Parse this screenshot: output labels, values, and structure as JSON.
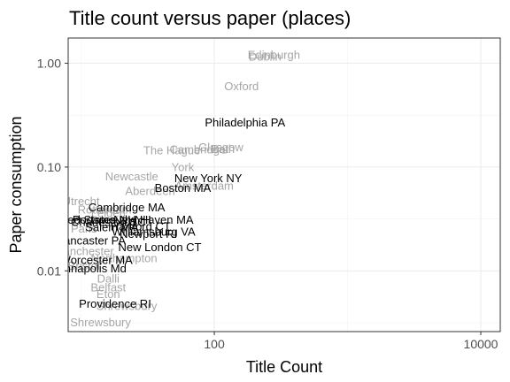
{
  "chart_data": {
    "type": "scatter",
    "title": "Title count versus paper (places)",
    "xlabel": "Title Count",
    "ylabel": "Paper consumption",
    "x_scale": "log10",
    "y_scale": "log10",
    "xlim": [
      8,
      14000
    ],
    "ylim": [
      0.0026,
      1.75
    ],
    "x_ticks": [
      {
        "value": 100,
        "label": "100"
      },
      {
        "value": 10000,
        "label": "10000"
      }
    ],
    "y_ticks": [
      {
        "value": 0.01,
        "label": "0.01"
      },
      {
        "value": 0.1,
        "label": "0.10"
      },
      {
        "value": 1,
        "label": "1.00"
      }
    ],
    "grid": true,
    "legend": "none",
    "colors": {
      "american": "#000000",
      "british": "#a6a6a6"
    },
    "points": [
      {
        "label": "Edinburgh",
        "x": 280,
        "y": 1.2,
        "group": "british"
      },
      {
        "label": "Dublin",
        "x": 240,
        "y": 1.16,
        "group": "british"
      },
      {
        "label": "Oxford",
        "x": 160,
        "y": 0.6,
        "group": "british"
      },
      {
        "label": "Philadelphia PA",
        "x": 170,
        "y": 0.27,
        "group": "american"
      },
      {
        "label": "Glasgow",
        "x": 112,
        "y": 0.155,
        "group": "british"
      },
      {
        "label": "Cambridge",
        "x": 75,
        "y": 0.148,
        "group": "british"
      },
      {
        "label": "The Hague",
        "x": 48,
        "y": 0.145,
        "group": "british"
      },
      {
        "label": "Bath",
        "x": 116,
        "y": 0.15,
        "group": "british"
      },
      {
        "label": "York",
        "x": 58,
        "y": 0.1,
        "group": "british"
      },
      {
        "label": "Newcastle",
        "x": 24,
        "y": 0.081,
        "group": "british"
      },
      {
        "label": "New York NY",
        "x": 90,
        "y": 0.078,
        "group": "american"
      },
      {
        "label": "Amsterdam",
        "x": 84,
        "y": 0.066,
        "group": "british"
      },
      {
        "label": "Boston MA",
        "x": 58,
        "y": 0.063,
        "group": "american"
      },
      {
        "label": "Aberdeen",
        "x": 33,
        "y": 0.059,
        "group": "british"
      },
      {
        "label": "Utrecht",
        "x": 10,
        "y": 0.047,
        "group": "british"
      },
      {
        "label": "Cambridge MA",
        "x": 22,
        "y": 0.041,
        "group": "american"
      },
      {
        "label": "Rotterdam",
        "x": 15,
        "y": 0.039,
        "group": "british"
      },
      {
        "label": "Leiden",
        "x": 16,
        "y": 0.036,
        "group": "british"
      },
      {
        "label": "United States NH",
        "x": 12,
        "y": 0.031,
        "group": "american"
      },
      {
        "label": "Portsmouth NH",
        "x": 17,
        "y": 0.031,
        "group": "american"
      },
      {
        "label": "New Haven MA",
        "x": 35,
        "y": 0.031,
        "group": "american"
      },
      {
        "label": "Charleston SC",
        "x": 16,
        "y": 0.0295,
        "group": "american"
      },
      {
        "label": "Paris",
        "x": 10.5,
        "y": 0.0255,
        "group": "british"
      },
      {
        "label": "Salem MA",
        "x": 17,
        "y": 0.0262,
        "group": "american"
      },
      {
        "label": "Hartford CT",
        "x": 28,
        "y": 0.0268,
        "group": "american"
      },
      {
        "label": "Williamsburg VA",
        "x": 35,
        "y": 0.0238,
        "group": "american"
      },
      {
        "label": "Newport RI",
        "x": 32,
        "y": 0.0227,
        "group": "american"
      },
      {
        "label": "Lancaster PA",
        "x": 12,
        "y": 0.0197,
        "group": "american"
      },
      {
        "label": "New London CT",
        "x": 39,
        "y": 0.017,
        "group": "american"
      },
      {
        "label": "Manchester",
        "x": 10.5,
        "y": 0.0155,
        "group": "british"
      },
      {
        "label": "Worcester MA",
        "x": 13,
        "y": 0.0127,
        "group": "american"
      },
      {
        "label": "Northampton",
        "x": 21,
        "y": 0.0133,
        "group": "british"
      },
      {
        "label": "Annapolis Md",
        "x": 12,
        "y": 0.0106,
        "group": "american"
      },
      {
        "label": "Bristol",
        "x": 10.5,
        "y": 0.0112,
        "group": "british"
      },
      {
        "label": "Dalli",
        "x": 16,
        "y": 0.0084,
        "group": "british"
      },
      {
        "label": "Belfast",
        "x": 16,
        "y": 0.0069,
        "group": "british"
      },
      {
        "label": "Eton",
        "x": 16,
        "y": 0.006,
        "group": "british"
      },
      {
        "label": "Providence RI",
        "x": 18,
        "y": 0.0048,
        "group": "american"
      },
      {
        "label": "Shrewsbury",
        "x": 22,
        "y": 0.0046,
        "group": "british"
      },
      {
        "label": "Shrewsbury",
        "x": 14,
        "y": 0.0032,
        "group": "british"
      }
    ]
  }
}
